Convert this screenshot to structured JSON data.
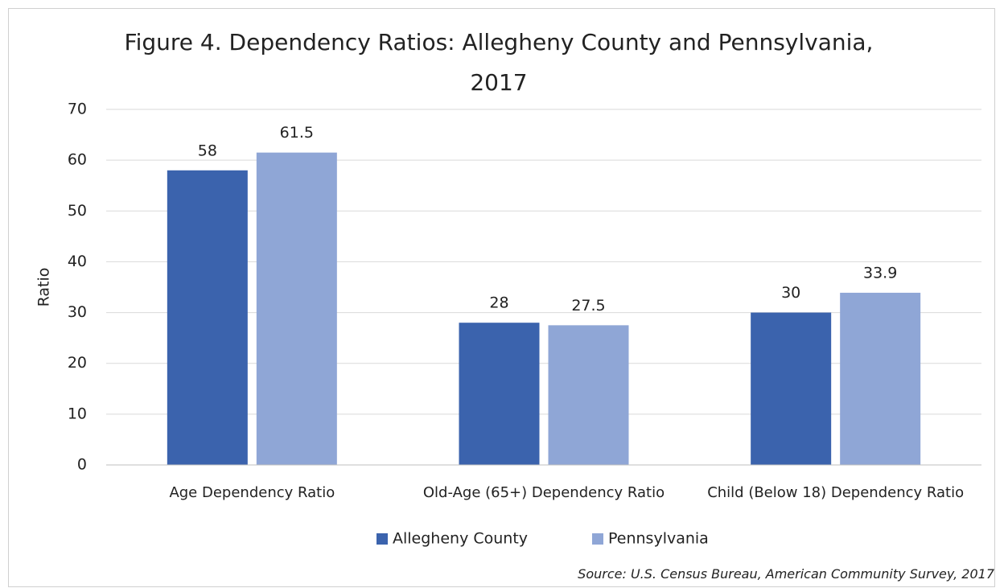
{
  "chart_data": {
    "type": "bar",
    "title": "Figure 4. Dependency Ratios: Allegheny County and Pennsylvania, 2017",
    "y_label": "Ratio",
    "categories": [
      "Age Dependency Ratio",
      "Old-Age (65+) Dependency Ratio",
      "Child (Below 18) Dependency Ratio"
    ],
    "series": [
      {
        "name": "Allegheny County",
        "color": "#3b63ad",
        "values": [
          58,
          28,
          30
        ]
      },
      {
        "name": "Pennsylvania",
        "color": "#8fa6d6",
        "values": [
          61.5,
          27.5,
          33.9
        ]
      }
    ],
    "ylim": [
      0,
      70
    ],
    "yticks": [
      0,
      10,
      20,
      30,
      40,
      50,
      60,
      70
    ],
    "grid": true,
    "legend": "bottom",
    "source": "Source: U.S. Census Bureau, American Community Survey, 2017"
  }
}
